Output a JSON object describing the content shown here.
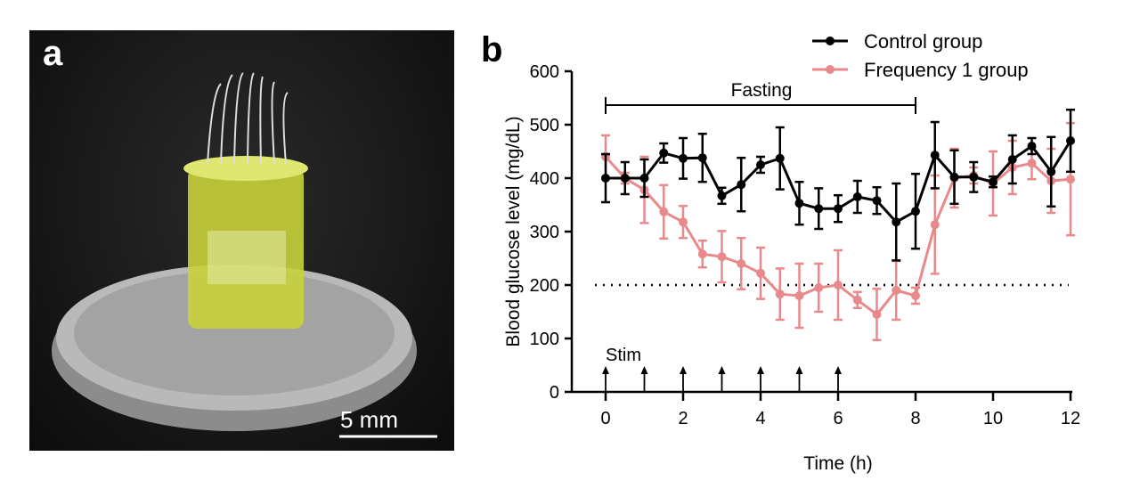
{
  "panel_a": {
    "label": "a",
    "scale_bar": "5 mm"
  },
  "panel_b": {
    "label": "b"
  },
  "chart_data": {
    "type": "line",
    "xlabel": "Time (h)",
    "ylabel": "Blood glucose level (mg/dL)",
    "xlim": [
      0,
      12
    ],
    "ylim": [
      0,
      600
    ],
    "xticks": [
      0,
      2,
      4,
      6,
      8,
      10,
      12
    ],
    "yticks": [
      0,
      100,
      200,
      300,
      400,
      500,
      600
    ],
    "legend_position": "top-right",
    "x": [
      0,
      0.5,
      1,
      1.5,
      2,
      2.5,
      3,
      3.5,
      4,
      4.5,
      5,
      5.5,
      6,
      6.5,
      7,
      7.5,
      8,
      8.5,
      9,
      9.5,
      10,
      10.5,
      11,
      11.5,
      12
    ],
    "series": [
      {
        "name": "Control group",
        "color": "#000000",
        "values": [
          400,
          400,
          400,
          447,
          437,
          438,
          367,
          388,
          425,
          437,
          353,
          343,
          343,
          365,
          358,
          318,
          338,
          443,
          402,
          402,
          393,
          435,
          460,
          412,
          470
        ],
        "errors": [
          45,
          30,
          35,
          18,
          38,
          45,
          15,
          50,
          15,
          58,
          40,
          38,
          25,
          30,
          25,
          72,
          70,
          62,
          50,
          28,
          10,
          45,
          15,
          65,
          58
        ]
      },
      {
        "name": "Frequency 1 group",
        "color": "#e8898b",
        "values": [
          440,
          400,
          378,
          337,
          318,
          258,
          253,
          240,
          222,
          183,
          180,
          195,
          200,
          172,
          145,
          190,
          180,
          313,
          400,
          405,
          390,
          420,
          428,
          395,
          398
        ],
        "errors": [
          40,
          10,
          62,
          50,
          30,
          25,
          48,
          48,
          48,
          48,
          60,
          45,
          65,
          15,
          48,
          55,
          15,
          92,
          55,
          15,
          60,
          50,
          30,
          60,
          105
        ]
      }
    ],
    "threshold": 200,
    "annotations": {
      "fasting": {
        "label": "Fasting",
        "from": 0,
        "to": 8
      },
      "stim": {
        "label": "Stim",
        "times": [
          0,
          1,
          2,
          3,
          4,
          5,
          6
        ]
      }
    }
  }
}
